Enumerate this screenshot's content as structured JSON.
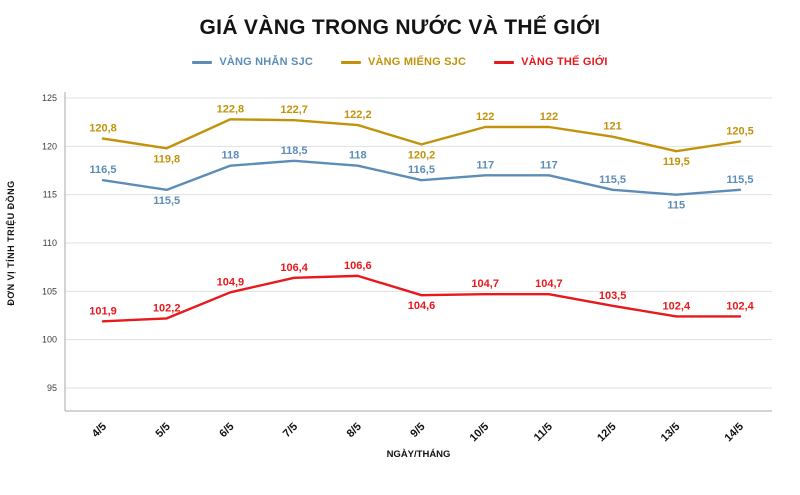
{
  "title": "GIÁ VÀNG TRONG NƯỚC VÀ THẾ GIỚI",
  "chart_data": {
    "type": "line",
    "title": "GIÁ VÀNG TRONG NƯỚC VÀ THẾ GIỚI",
    "xlabel": "NGÀY/THÁNG",
    "ylabel": "ĐƠN VỊ TÍNH TRIỆU ĐỒNG",
    "categories": [
      "4/5",
      "5/5",
      "6/5",
      "7/5",
      "8/5",
      "9/5",
      "10/5",
      "11/5",
      "12/5",
      "13/5",
      "14/5"
    ],
    "series": [
      {
        "name": "VÀNG NHẪN SJC",
        "color": "#5b8db8",
        "values": [
          116.5,
          115.5,
          118,
          118.5,
          118,
          116.5,
          117,
          117,
          115.5,
          115,
          115.5
        ],
        "label_pos": [
          "a",
          "b",
          "a",
          "a",
          "a",
          "a",
          "a",
          "a",
          "a",
          "b",
          "a"
        ]
      },
      {
        "name": "VÀNG MIẾNG SJC",
        "color": "#c2930a",
        "values": [
          120.8,
          119.8,
          122.8,
          122.7,
          122.2,
          120.2,
          122,
          122,
          121,
          119.5,
          120.5
        ],
        "label_pos": [
          "a",
          "b",
          "a",
          "a",
          "a",
          "b",
          "a",
          "a",
          "a",
          "b",
          "a"
        ]
      },
      {
        "name": "VÀNG THẾ GIỚI",
        "color": "#e8191c",
        "values": [
          101.9,
          102.2,
          104.9,
          106.4,
          106.6,
          104.6,
          104.7,
          104.7,
          103.5,
          102.4,
          102.4
        ],
        "label_pos": [
          "a",
          "a",
          "a",
          "a",
          "a",
          "b",
          "a",
          "a",
          "a",
          "a",
          "a"
        ]
      }
    ],
    "ylim": [
      93,
      125
    ],
    "yticks": [
      95,
      100,
      105,
      110,
      115,
      120,
      125
    ],
    "grid": true,
    "legend_position": "top"
  }
}
